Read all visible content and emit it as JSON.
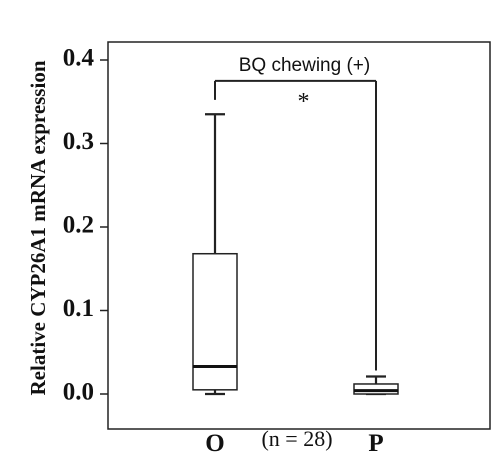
{
  "chart_data": {
    "type": "box",
    "ylabel": "Relative CYP26A1 mRNA expression",
    "ylim": [
      -0.04,
      0.42
    ],
    "yticks": [
      0.0,
      0.1,
      0.2,
      0.3,
      0.4
    ],
    "ytick_labels": [
      "0.0",
      "0.1",
      "0.2",
      "0.3",
      "0.4"
    ],
    "categories": [
      "O",
      "P"
    ],
    "boxes": [
      {
        "category": "O",
        "min": 0.0,
        "q1": 0.005,
        "median": 0.033,
        "q3": 0.168,
        "max": 0.335
      },
      {
        "category": "P",
        "min": 0.0,
        "q1": 0.0,
        "median": 0.004,
        "q3": 0.012,
        "max": 0.021
      }
    ],
    "sample_note": "(n = 28)",
    "annotation": {
      "label": "BQ chewing (+)",
      "significance": "*",
      "bracket_y": 0.375
    }
  }
}
